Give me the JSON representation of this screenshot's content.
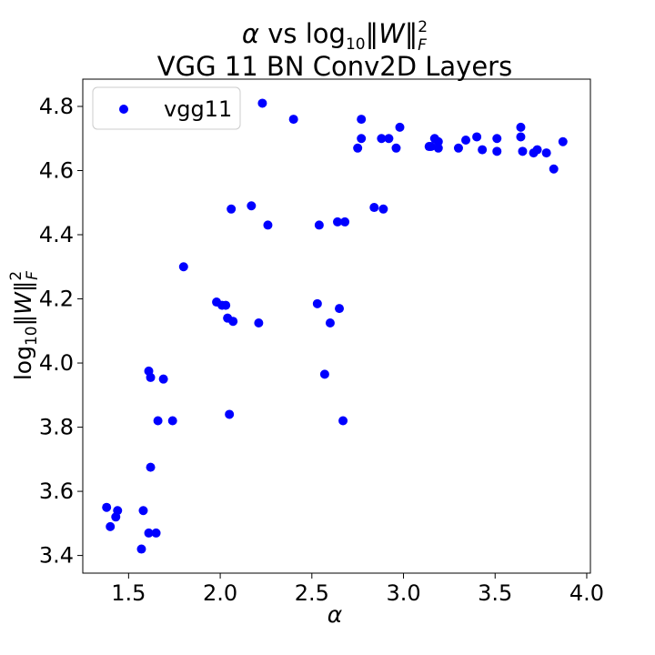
{
  "chart_data": {
    "type": "scatter",
    "title": {
      "line1": {
        "alpha": "α",
        "vs": " vs log",
        "sub": "10",
        "norm_open": "‖",
        "W": "W",
        "norm_close": "‖",
        "sup": "2",
        "subF": "F"
      },
      "line2": "VGG 11 BN  Conv2D Layers"
    },
    "xlabel": "α",
    "ylabel": {
      "log": "log",
      "sub": "10",
      "norm_open": "‖",
      "W": "W",
      "norm_close": "‖",
      "sup": "2",
      "subF": "F"
    },
    "xlim": [
      1.25,
      4.02
    ],
    "ylim": [
      3.345,
      4.885
    ],
    "xticks": [
      "1.5",
      "2.0",
      "2.5",
      "3.0",
      "3.5",
      "4.0"
    ],
    "yticks": [
      "3.4",
      "3.6",
      "3.8",
      "4.0",
      "4.2",
      "4.4",
      "4.6",
      "4.8"
    ],
    "legend_position": "upper-left",
    "series": [
      {
        "name": "vgg11",
        "color": "#0000ff",
        "points": [
          [
            1.38,
            3.55
          ],
          [
            1.4,
            3.49
          ],
          [
            1.43,
            3.52
          ],
          [
            1.44,
            3.54
          ],
          [
            1.57,
            3.42
          ],
          [
            1.58,
            3.54
          ],
          [
            1.61,
            3.47
          ],
          [
            1.61,
            3.975
          ],
          [
            1.62,
            3.955
          ],
          [
            1.62,
            3.675
          ],
          [
            1.65,
            3.47
          ],
          [
            1.66,
            3.82
          ],
          [
            1.69,
            3.95
          ],
          [
            1.74,
            3.82
          ],
          [
            1.8,
            4.3
          ],
          [
            1.98,
            4.19
          ],
          [
            2.01,
            4.18
          ],
          [
            2.03,
            4.18
          ],
          [
            2.04,
            4.14
          ],
          [
            2.05,
            3.84
          ],
          [
            2.06,
            4.48
          ],
          [
            2.07,
            4.13
          ],
          [
            2.17,
            4.49
          ],
          [
            2.21,
            4.125
          ],
          [
            2.23,
            4.81
          ],
          [
            2.26,
            4.43
          ],
          [
            2.4,
            4.76
          ],
          [
            2.53,
            4.185
          ],
          [
            2.54,
            4.43
          ],
          [
            2.57,
            3.965
          ],
          [
            2.6,
            4.125
          ],
          [
            2.64,
            4.44
          ],
          [
            2.65,
            4.17
          ],
          [
            2.67,
            3.82
          ],
          [
            2.68,
            4.44
          ],
          [
            2.75,
            4.67
          ],
          [
            2.77,
            4.76
          ],
          [
            2.77,
            4.7
          ],
          [
            2.84,
            4.485
          ],
          [
            2.88,
            4.7
          ],
          [
            2.89,
            4.48
          ],
          [
            2.92,
            4.7
          ],
          [
            2.96,
            4.67
          ],
          [
            2.98,
            4.735
          ],
          [
            3.14,
            4.675
          ],
          [
            3.15,
            4.675
          ],
          [
            3.17,
            4.7
          ],
          [
            3.19,
            4.67
          ],
          [
            3.19,
            4.69
          ],
          [
            3.3,
            4.67
          ],
          [
            3.34,
            4.695
          ],
          [
            3.4,
            4.705
          ],
          [
            3.43,
            4.665
          ],
          [
            3.51,
            4.66
          ],
          [
            3.51,
            4.7
          ],
          [
            3.64,
            4.735
          ],
          [
            3.64,
            4.705
          ],
          [
            3.65,
            4.66
          ],
          [
            3.71,
            4.655
          ],
          [
            3.73,
            4.665
          ],
          [
            3.78,
            4.655
          ],
          [
            3.82,
            4.605
          ],
          [
            3.87,
            4.69
          ]
        ]
      }
    ]
  }
}
